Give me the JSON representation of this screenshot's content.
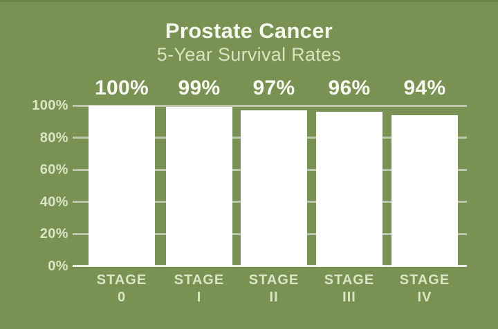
{
  "chart_data": {
    "type": "bar",
    "title": "Prostate Cancer",
    "subtitle": "5-Year Survival Rates",
    "xlabel": "",
    "ylabel": "",
    "categories": [
      "STAGE 0",
      "STAGE I",
      "STAGE II",
      "STAGE III",
      "STAGE IV"
    ],
    "category_lines": [
      {
        "line1": "STAGE",
        "line2": "0"
      },
      {
        "line1": "STAGE",
        "line2": "I"
      },
      {
        "line1": "STAGE",
        "line2": "II"
      },
      {
        "line1": "STAGE",
        "line2": "III"
      },
      {
        "line1": "STAGE",
        "line2": "IV"
      }
    ],
    "values": [
      100,
      99,
      97,
      96,
      94
    ],
    "value_labels": [
      "100%",
      "99%",
      "97%",
      "96%",
      "94%"
    ],
    "unit": "%",
    "ylim": [
      0,
      100
    ],
    "y_ticks": [
      {
        "value": 100,
        "label": "100%"
      },
      {
        "value": 80,
        "label": "80%"
      },
      {
        "value": 60,
        "label": "60%"
      },
      {
        "value": 40,
        "label": "40%"
      },
      {
        "value": 20,
        "label": "20%"
      },
      {
        "value": 0,
        "label": "0%"
      }
    ],
    "grid": true,
    "legend": false,
    "value_labels_position": "above-bars"
  },
  "colors": {
    "background": "#7a9154",
    "top_edge_shade": "rgba(0,0,0,0.10)",
    "bar_fill": "#ffffff",
    "title_text": "#f4f7ec",
    "subtitle_text": "#d8e4c0",
    "axis_text": "#d9e6c3",
    "value_label_text": "#f8faf2",
    "gridline": "rgba(255,255,255,0.5)",
    "baseline": "rgba(255,255,255,0.85)"
  }
}
